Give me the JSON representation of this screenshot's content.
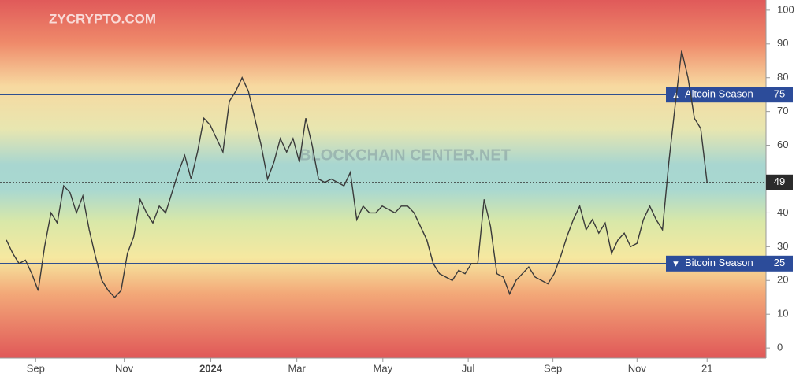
{
  "chart_data": {
    "type": "line",
    "watermark": "BLOCKCHAIN CENTER.NET",
    "logo": "ZYCRYPTO.COM",
    "color": "#3a3a3a",
    "values": [
      32,
      28,
      25,
      26,
      22,
      17,
      30,
      40,
      37,
      48,
      46,
      40,
      45,
      35,
      27,
      20,
      17,
      15,
      17,
      28,
      33,
      44,
      40,
      37,
      42,
      40,
      46,
      52,
      57,
      50,
      58,
      68,
      66,
      62,
      58,
      73,
      76,
      80,
      76,
      68,
      60,
      50,
      55,
      62,
      58,
      62,
      55,
      68,
      60,
      50,
      49,
      50,
      49,
      48,
      52,
      38,
      42,
      40,
      40,
      42,
      41,
      40,
      42,
      42,
      40,
      36,
      32,
      25,
      22,
      21,
      20,
      23,
      22,
      25,
      25,
      44,
      36,
      22,
      21,
      16,
      20,
      22,
      24,
      21,
      20,
      19,
      22,
      27,
      33,
      38,
      42,
      35,
      38,
      34,
      37,
      28,
      32,
      34,
      30,
      31,
      38,
      42,
      38,
      35,
      55,
      72,
      88,
      80,
      68,
      65,
      49
    ],
    "xlim": [
      -1,
      119.25
    ],
    "xticks": [
      {
        "value": 4.6,
        "label": "Sep"
      },
      {
        "value": 18.5,
        "label": "Nov"
      },
      {
        "value": 32.1,
        "label": "2024"
      },
      {
        "value": 45.6,
        "label": "Mar"
      },
      {
        "value": 59.1,
        "label": "May"
      },
      {
        "value": 72.5,
        "label": "Jul"
      },
      {
        "value": 85.8,
        "label": "Sep"
      },
      {
        "value": 99,
        "label": "Nov"
      },
      {
        "value": 110,
        "label": "21"
      }
    ],
    "ylim": [
      -3,
      103
    ],
    "yticks": [
      0,
      10,
      20,
      30,
      40,
      50,
      60,
      70,
      80,
      90,
      100
    ],
    "reference_lines": [
      {
        "marker": "▲",
        "label": "Altcoin Season",
        "value": 75
      },
      {
        "marker": "▼",
        "label": "Bitcoin Season",
        "value": 25
      }
    ]
  }
}
